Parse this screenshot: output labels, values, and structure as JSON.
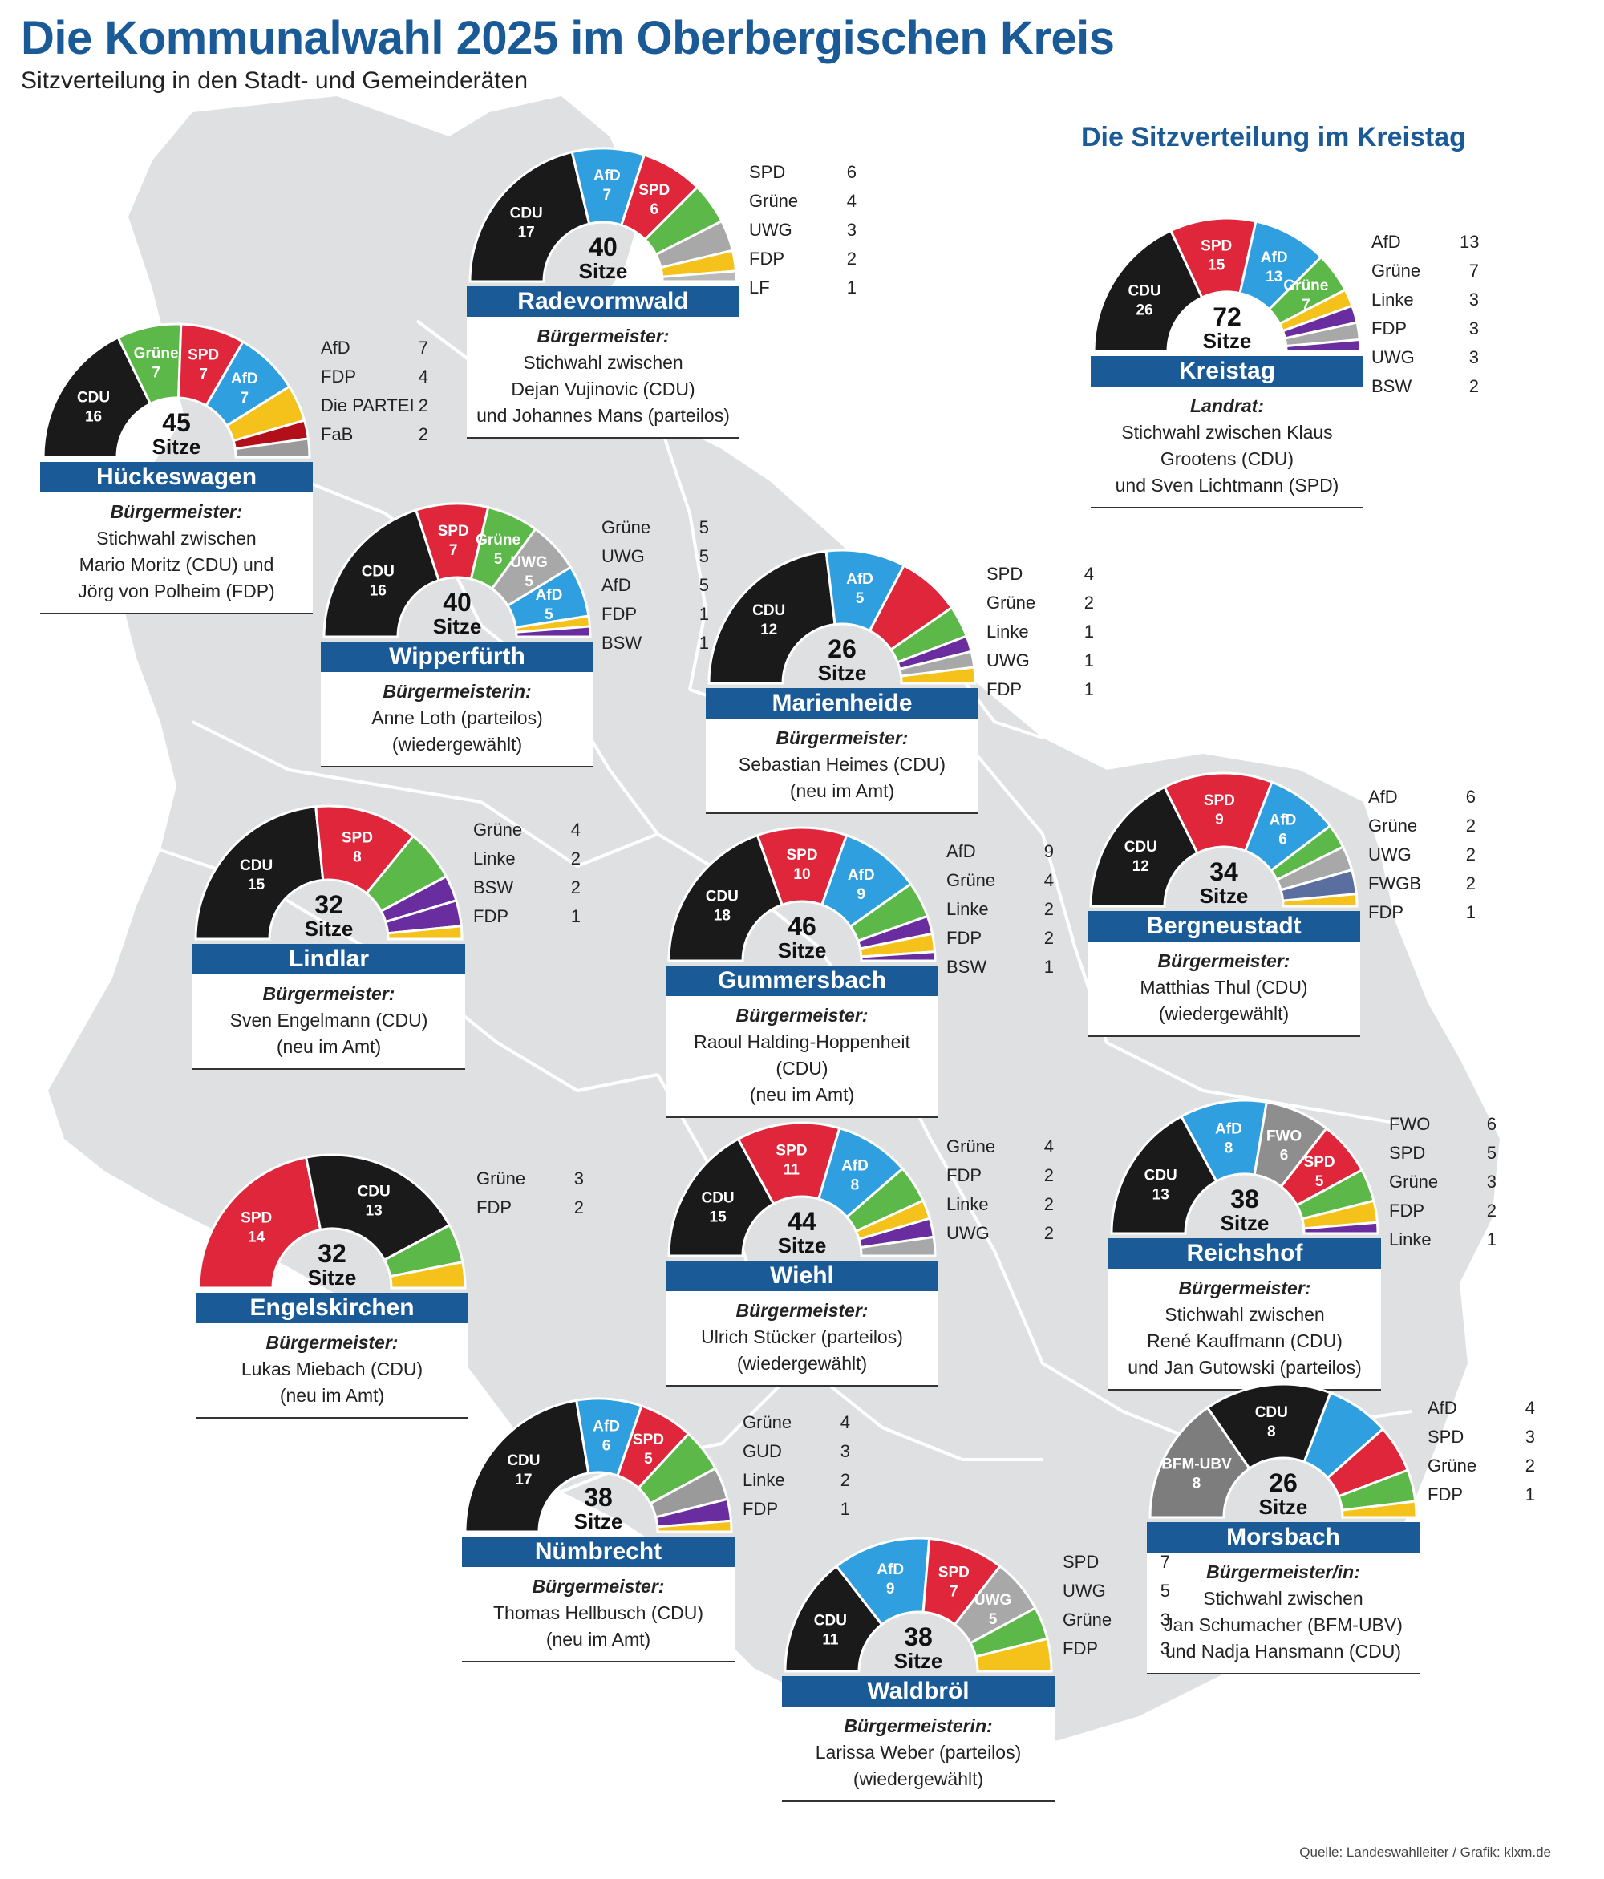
{
  "header": {
    "title": "Die Kommunalwahl 2025 im Oberbergischen Kreis",
    "subtitle": "Sitzverteilung in den Stadt- und Gemeinderäten",
    "kreistag_heading": "Die Sitzverteilung im Kreistag",
    "source": "Quelle: Landeswahlleiter / Grafik: klxm.de"
  },
  "colors": {
    "CDU": "#1a1a1a",
    "AfD": "#2f9fe0",
    "SPD": "#e0263b",
    "Grüne": "#5cb848",
    "UWG": "#a8a8a8",
    "FDP": "#f5c21b",
    "LF": "#b9b9b9",
    "Die PARTEI": "#b30f1b",
    "FaB": "#9a9a9a",
    "BSW": "#6a2d9f",
    "Linke": "#6a2d9f",
    "FWGB": "#5a6fa0",
    "FWO": "#8e8e8e",
    "BFM-UBV": "#7d7d7d",
    "GUD": "#9a9a9a",
    "banner": "#1a5a96",
    "map": "#dfe0e2"
  },
  "chart_data": [
    {
      "type": "pie",
      "id": "radevormwald",
      "title": "Radevormwald",
      "total": 40,
      "total_label": "Sitze",
      "segments": [
        {
          "party": "CDU",
          "seats": 17
        },
        {
          "party": "AfD",
          "seats": 7
        },
        {
          "party": "SPD",
          "seats": 6
        },
        {
          "party": "Grüne",
          "seats": 4
        },
        {
          "party": "UWG",
          "seats": 3
        },
        {
          "party": "FDP",
          "seats": 2
        },
        {
          "party": "LF",
          "seats": 1
        }
      ],
      "legend": [
        {
          "party": "SPD",
          "seats": 6
        },
        {
          "party": "Grüne",
          "seats": 4
        },
        {
          "party": "UWG",
          "seats": 3
        },
        {
          "party": "FDP",
          "seats": 2
        },
        {
          "party": "LF",
          "seats": 1
        }
      ],
      "info": {
        "role": "Bürgermeister:",
        "lines": [
          "Stichwahl zwischen",
          "Dejan Vujinovic (CDU)",
          "und Johannes Mans (parteilos)"
        ]
      }
    },
    {
      "type": "pie",
      "id": "kreistag",
      "title": "Kreistag",
      "total": 72,
      "total_label": "Sitze",
      "segments": [
        {
          "party": "CDU",
          "seats": 26
        },
        {
          "party": "SPD",
          "seats": 15
        },
        {
          "party": "AfD",
          "seats": 13
        },
        {
          "party": "Grüne",
          "seats": 7
        },
        {
          "party": "FDP",
          "seats": 3
        },
        {
          "party": "Linke",
          "seats": 3
        },
        {
          "party": "UWG",
          "seats": 3
        },
        {
          "party": "BSW",
          "seats": 2
        }
      ],
      "legend": [
        {
          "party": "AfD",
          "seats": 13
        },
        {
          "party": "Grüne",
          "seats": 7
        },
        {
          "party": "Linke",
          "seats": 3
        },
        {
          "party": "FDP",
          "seats": 3
        },
        {
          "party": "UWG",
          "seats": 3
        },
        {
          "party": "BSW",
          "seats": 2
        }
      ],
      "info": {
        "role": "Landrat:",
        "lines": [
          "Stichwahl zwischen Klaus Grootens (CDU)",
          "und Sven Lichtmann (SPD)"
        ]
      }
    },
    {
      "type": "pie",
      "id": "hueckeswagen",
      "title": "Hückeswagen",
      "total": 45,
      "total_label": "Sitze",
      "segments": [
        {
          "party": "CDU",
          "seats": 16
        },
        {
          "party": "Grüne",
          "seats": 7
        },
        {
          "party": "SPD",
          "seats": 7
        },
        {
          "party": "AfD",
          "seats": 7
        },
        {
          "party": "FDP",
          "seats": 4
        },
        {
          "party": "Die PARTEI",
          "seats": 2
        },
        {
          "party": "FaB",
          "seats": 2
        }
      ],
      "legend": [
        {
          "party": "AfD",
          "seats": 7
        },
        {
          "party": "FDP",
          "seats": 4
        },
        {
          "party": "Die PARTEI",
          "seats": 2
        },
        {
          "party": "FaB",
          "seats": 2
        }
      ],
      "info": {
        "role": "Bürgermeister:",
        "lines": [
          "Stichwahl zwischen",
          "Mario Moritz (CDU) und",
          "Jörg von Polheim (FDP)"
        ]
      }
    },
    {
      "type": "pie",
      "id": "wipperfuerth",
      "title": "Wipperfürth",
      "total": 40,
      "total_label": "Sitze",
      "segments": [
        {
          "party": "CDU",
          "seats": 16
        },
        {
          "party": "SPD",
          "seats": 7
        },
        {
          "party": "Grüne",
          "seats": 5
        },
        {
          "party": "UWG",
          "seats": 5
        },
        {
          "party": "AfD",
          "seats": 5
        },
        {
          "party": "FDP",
          "seats": 1
        },
        {
          "party": "BSW",
          "seats": 1
        }
      ],
      "legend": [
        {
          "party": "Grüne",
          "seats": 5
        },
        {
          "party": "UWG",
          "seats": 5
        },
        {
          "party": "AfD",
          "seats": 5
        },
        {
          "party": "FDP",
          "seats": 1
        },
        {
          "party": "BSW",
          "seats": 1
        }
      ],
      "info": {
        "role": "Bürgermeisterin:",
        "lines": [
          "Anne Loth (parteilos)",
          "(wiedergewählt)"
        ]
      }
    },
    {
      "type": "pie",
      "id": "marienheide",
      "title": "Marienheide",
      "total": 26,
      "total_label": "Sitze",
      "segments": [
        {
          "party": "CDU",
          "seats": 12
        },
        {
          "party": "AfD",
          "seats": 5
        },
        {
          "party": "SPD",
          "seats": 4
        },
        {
          "party": "Grüne",
          "seats": 2
        },
        {
          "party": "Linke",
          "seats": 1
        },
        {
          "party": "UWG",
          "seats": 1
        },
        {
          "party": "FDP",
          "seats": 1
        }
      ],
      "legend": [
        {
          "party": "SPD",
          "seats": 4
        },
        {
          "party": "Grüne",
          "seats": 2
        },
        {
          "party": "Linke",
          "seats": 1
        },
        {
          "party": "UWG",
          "seats": 1
        },
        {
          "party": "FDP",
          "seats": 1
        }
      ],
      "info": {
        "role": "Bürgermeister:",
        "lines": [
          "Sebastian Heimes (CDU)",
          "(neu im Amt)"
        ]
      }
    },
    {
      "type": "pie",
      "id": "lindlar",
      "title": "Lindlar",
      "total": 32,
      "total_label": "Sitze",
      "segments": [
        {
          "party": "CDU",
          "seats": 15
        },
        {
          "party": "SPD",
          "seats": 8
        },
        {
          "party": "Grüne",
          "seats": 4
        },
        {
          "party": "Linke",
          "seats": 2
        },
        {
          "party": "BSW",
          "seats": 2
        },
        {
          "party": "FDP",
          "seats": 1
        }
      ],
      "legend": [
        {
          "party": "Grüne",
          "seats": 4
        },
        {
          "party": "Linke",
          "seats": 2
        },
        {
          "party": "BSW",
          "seats": 2
        },
        {
          "party": "FDP",
          "seats": 1
        }
      ],
      "info": {
        "role": "Bürgermeister:",
        "lines": [
          "Sven Engelmann (CDU)",
          "(neu im Amt)"
        ]
      }
    },
    {
      "type": "pie",
      "id": "gummersbach",
      "title": "Gummersbach",
      "total": 46,
      "total_label": "Sitze",
      "segments": [
        {
          "party": "CDU",
          "seats": 18
        },
        {
          "party": "SPD",
          "seats": 10
        },
        {
          "party": "AfD",
          "seats": 9
        },
        {
          "party": "Grüne",
          "seats": 4
        },
        {
          "party": "Linke",
          "seats": 2
        },
        {
          "party": "FDP",
          "seats": 2
        },
        {
          "party": "BSW",
          "seats": 1
        }
      ],
      "legend": [
        {
          "party": "AfD",
          "seats": 9
        },
        {
          "party": "Grüne",
          "seats": 4
        },
        {
          "party": "Linke",
          "seats": 2
        },
        {
          "party": "FDP",
          "seats": 2
        },
        {
          "party": "BSW",
          "seats": 1
        }
      ],
      "info": {
        "role": "Bürgermeister:",
        "lines": [
          "Raoul Halding-Hoppenheit (CDU)",
          "(neu im Amt)"
        ]
      }
    },
    {
      "type": "pie",
      "id": "bergneustadt",
      "title": "Bergneustadt",
      "total": 34,
      "total_label": "Sitze",
      "segments": [
        {
          "party": "CDU",
          "seats": 12
        },
        {
          "party": "SPD",
          "seats": 9
        },
        {
          "party": "AfD",
          "seats": 6
        },
        {
          "party": "Grüne",
          "seats": 2
        },
        {
          "party": "UWG",
          "seats": 2
        },
        {
          "party": "FWGB",
          "seats": 2
        },
        {
          "party": "FDP",
          "seats": 1
        }
      ],
      "legend": [
        {
          "party": "AfD",
          "seats": 6
        },
        {
          "party": "Grüne",
          "seats": 2
        },
        {
          "party": "UWG",
          "seats": 2
        },
        {
          "party": "FWGB",
          "seats": 2
        },
        {
          "party": "FDP",
          "seats": 1
        }
      ],
      "info": {
        "role": "Bürgermeister:",
        "lines": [
          "Matthias Thul (CDU)",
          "(wiedergewählt)"
        ]
      }
    },
    {
      "type": "pie",
      "id": "engelskirchen",
      "title": "Engelskirchen",
      "total": 32,
      "total_label": "Sitze",
      "segments": [
        {
          "party": "SPD",
          "seats": 14
        },
        {
          "party": "CDU",
          "seats": 13
        },
        {
          "party": "Grüne",
          "seats": 3
        },
        {
          "party": "FDP",
          "seats": 2
        }
      ],
      "legend": [
        {
          "party": "Grüne",
          "seats": 3
        },
        {
          "party": "FDP",
          "seats": 2
        }
      ],
      "info": {
        "role": "Bürgermeister:",
        "lines": [
          "Lukas Miebach (CDU)",
          "(neu im Amt)"
        ]
      }
    },
    {
      "type": "pie",
      "id": "wiehl",
      "title": "Wiehl",
      "total": 44,
      "total_label": "Sitze",
      "segments": [
        {
          "party": "CDU",
          "seats": 15
        },
        {
          "party": "SPD",
          "seats": 11
        },
        {
          "party": "AfD",
          "seats": 8
        },
        {
          "party": "Grüne",
          "seats": 4
        },
        {
          "party": "FDP",
          "seats": 2
        },
        {
          "party": "Linke",
          "seats": 2
        },
        {
          "party": "UWG",
          "seats": 2
        }
      ],
      "legend": [
        {
          "party": "Grüne",
          "seats": 4
        },
        {
          "party": "FDP",
          "seats": 2
        },
        {
          "party": "Linke",
          "seats": 2
        },
        {
          "party": "UWG",
          "seats": 2
        }
      ],
      "info": {
        "role": "Bürgermeister:",
        "lines": [
          "Ulrich Stücker (parteilos)",
          "(wiedergewählt)"
        ]
      }
    },
    {
      "type": "pie",
      "id": "reichshof",
      "title": "Reichshof",
      "total": 38,
      "total_label": "Sitze",
      "segments": [
        {
          "party": "CDU",
          "seats": 13
        },
        {
          "party": "AfD",
          "seats": 8
        },
        {
          "party": "FWO",
          "seats": 6
        },
        {
          "party": "SPD",
          "seats": 5
        },
        {
          "party": "Grüne",
          "seats": 3
        },
        {
          "party": "FDP",
          "seats": 2
        },
        {
          "party": "Linke",
          "seats": 1
        }
      ],
      "legend": [
        {
          "party": "FWO",
          "seats": 6
        },
        {
          "party": "SPD",
          "seats": 5
        },
        {
          "party": "Grüne",
          "seats": 3
        },
        {
          "party": "FDP",
          "seats": 2
        },
        {
          "party": "Linke",
          "seats": 1
        }
      ],
      "info": {
        "role": "Bürgermeister:",
        "lines": [
          "Stichwahl zwischen",
          "René Kauffmann (CDU)",
          "und Jan Gutowski (parteilos)"
        ]
      }
    },
    {
      "type": "pie",
      "id": "nuembrecht",
      "title": "Nümbrecht",
      "total": 38,
      "total_label": "Sitze",
      "segments": [
        {
          "party": "CDU",
          "seats": 17
        },
        {
          "party": "AfD",
          "seats": 6
        },
        {
          "party": "SPD",
          "seats": 5
        },
        {
          "party": "Grüne",
          "seats": 4
        },
        {
          "party": "GUD",
          "seats": 3
        },
        {
          "party": "Linke",
          "seats": 2
        },
        {
          "party": "FDP",
          "seats": 1
        }
      ],
      "legend": [
        {
          "party": "Grüne",
          "seats": 4
        },
        {
          "party": "GUD",
          "seats": 3
        },
        {
          "party": "Linke",
          "seats": 2
        },
        {
          "party": "FDP",
          "seats": 1
        }
      ],
      "info": {
        "role": "Bürgermeister:",
        "lines": [
          "Thomas Hellbusch (CDU)",
          "(neu im Amt)"
        ]
      }
    },
    {
      "type": "pie",
      "id": "morsbach",
      "title": "Morsbach",
      "total": 26,
      "total_label": "Sitze",
      "segments": [
        {
          "party": "BFM-UBV",
          "seats": 8
        },
        {
          "party": "CDU",
          "seats": 8
        },
        {
          "party": "AfD",
          "seats": 4
        },
        {
          "party": "SPD",
          "seats": 3
        },
        {
          "party": "Grüne",
          "seats": 2
        },
        {
          "party": "FDP",
          "seats": 1
        }
      ],
      "legend": [
        {
          "party": "AfD",
          "seats": 4
        },
        {
          "party": "SPD",
          "seats": 3
        },
        {
          "party": "Grüne",
          "seats": 2
        },
        {
          "party": "FDP",
          "seats": 1
        }
      ],
      "info": {
        "role": "Bürgermeister/in:",
        "lines": [
          "Stichwahl zwischen",
          "Jan Schumacher (BFM-UBV)",
          "und Nadja Hansmann (CDU)"
        ]
      }
    },
    {
      "type": "pie",
      "id": "waldbroel",
      "title": "Waldbröl",
      "total": 38,
      "total_label": "Sitze",
      "segments": [
        {
          "party": "CDU",
          "seats": 11
        },
        {
          "party": "AfD",
          "seats": 9
        },
        {
          "party": "SPD",
          "seats": 7
        },
        {
          "party": "UWG",
          "seats": 5
        },
        {
          "party": "Grüne",
          "seats": 3
        },
        {
          "party": "FDP",
          "seats": 3
        }
      ],
      "legend": [
        {
          "party": "SPD",
          "seats": 7
        },
        {
          "party": "UWG",
          "seats": 5
        },
        {
          "party": "Grüne",
          "seats": 3
        },
        {
          "party": "FDP",
          "seats": 3
        }
      ],
      "info": {
        "role": "Bürgermeisterin:",
        "lines": [
          "Larissa Weber (parteilos)",
          "(wiedergewählt)"
        ]
      }
    }
  ]
}
